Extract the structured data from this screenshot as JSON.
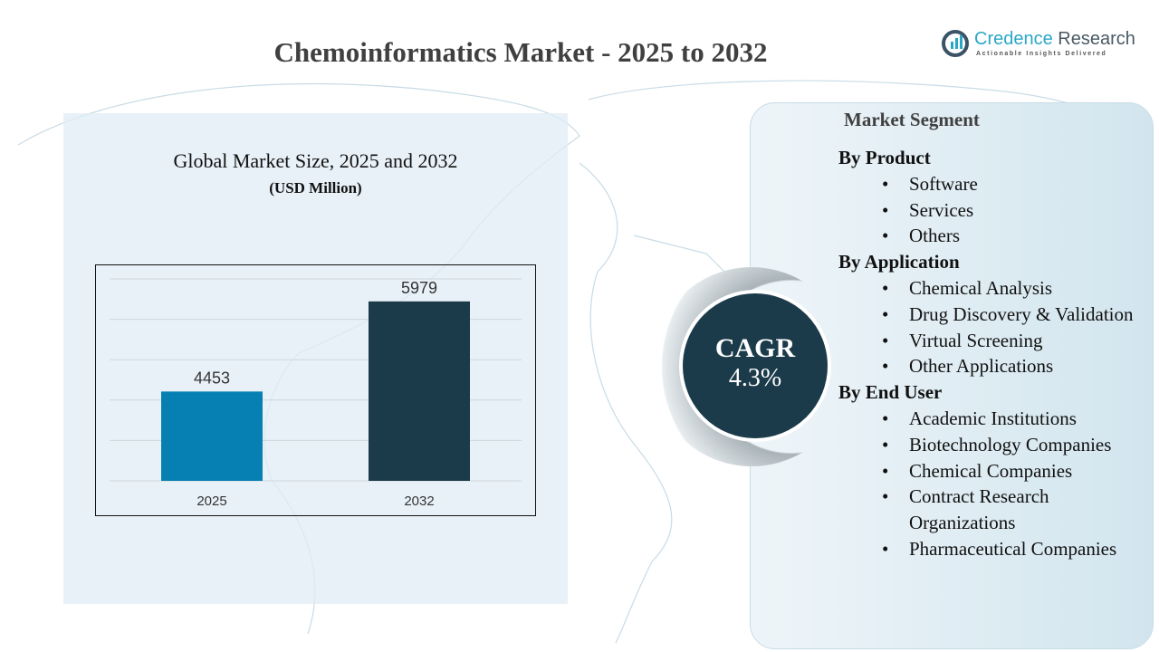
{
  "title": "Chemoinformatics Market - 2025 to 2032",
  "logo": {
    "name_a": "Credence",
    "name_b": " Research",
    "tagline": "Actionable Insights Delivered"
  },
  "chart_data": {
    "type": "bar",
    "title": "Global Market Size, 2025 and 2032",
    "subtitle": "(USD Million)",
    "categories": [
      "2025",
      "2032"
    ],
    "values": [
      4453,
      5979
    ],
    "colors": [
      "#0680b2",
      "#1b3b4a"
    ],
    "ylim": [
      2940,
      6360
    ],
    "grid": true,
    "xlabel": "",
    "ylabel": ""
  },
  "cagr": {
    "label": "CAGR",
    "value": "4.3%"
  },
  "segment": {
    "title": "Market Segment",
    "groups": [
      {
        "heading": "By Product",
        "items": [
          "Software",
          "Services",
          "Others"
        ]
      },
      {
        "heading": "By Application",
        "items": [
          "Chemical Analysis",
          "Drug Discovery & Validation",
          "Virtual Screening",
          "Other Applications"
        ]
      },
      {
        "heading": "By End User",
        "items": [
          "Academic Institutions",
          "Biotechnology Companies",
          "Chemical Companies",
          "Contract Research Organizations",
          "Pharmaceutical Companies"
        ]
      }
    ]
  }
}
